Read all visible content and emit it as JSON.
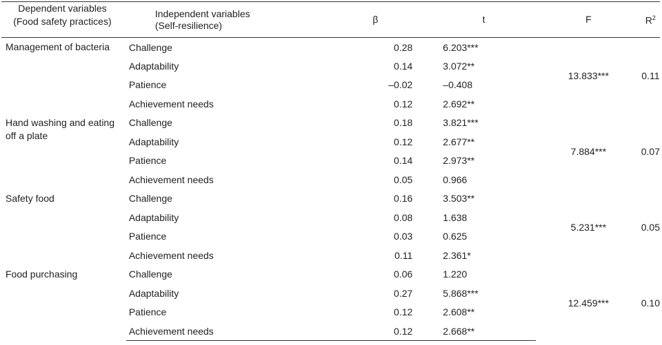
{
  "header": {
    "dep_line1": "Dependent variables",
    "dep_line2": "(Food safety practices)",
    "ind_line1": "Independent variables",
    "ind_line2": "(Self-resilience)",
    "beta": "β",
    "t": "t",
    "f": "F",
    "r2_base": "R",
    "r2_sup": "2"
  },
  "groups": [
    {
      "dependent": "Management of bacteria",
      "F": "13.833***",
      "R2": "0.11",
      "rows": [
        {
          "independent": "Challenge",
          "beta": "0.28",
          "t": "6.203***"
        },
        {
          "independent": "Adaptability",
          "beta": "0.14",
          "t": "3.072**"
        },
        {
          "independent": "Patience",
          "beta": "–0.02",
          "t": "–0.408"
        },
        {
          "independent": "Achievement needs",
          "beta": "0.12",
          "t": "2.692**"
        }
      ]
    },
    {
      "dependent": "Hand washing and eating off a plate",
      "F": "7.884***",
      "R2": "0.07",
      "rows": [
        {
          "independent": "Challenge",
          "beta": "0.18",
          "t": "3.821***"
        },
        {
          "independent": "Adaptability",
          "beta": "0.12",
          "t": "2.677**"
        },
        {
          "independent": "Patience",
          "beta": "0.14",
          "t": "2.973**"
        },
        {
          "independent": "Achievement needs",
          "beta": "0.05",
          "t": "0.966"
        }
      ]
    },
    {
      "dependent": "Safety food",
      "F": "5.231***",
      "R2": "0.05",
      "rows": [
        {
          "independent": "Challenge",
          "beta": "0.16",
          "t": "3.503**"
        },
        {
          "independent": "Adaptability",
          "beta": "0.08",
          "t": "1.638"
        },
        {
          "independent": "Patience",
          "beta": "0.03",
          "t": "0.625"
        },
        {
          "independent": "Achievement needs",
          "beta": "0.11",
          "t": "2.361*"
        }
      ]
    },
    {
      "dependent": "Food purchasing",
      "F": "12.459***",
      "R2": "0.10",
      "rows": [
        {
          "independent": "Challenge",
          "beta": "0.06",
          "t": "1.220"
        },
        {
          "independent": "Adaptability",
          "beta": "0.27",
          "t": "5.868***"
        },
        {
          "independent": "Patience",
          "beta": "0.12",
          "t": "2.608**"
        },
        {
          "independent": "Achievement needs",
          "beta": "0.12",
          "t": "2.668**"
        }
      ]
    }
  ]
}
